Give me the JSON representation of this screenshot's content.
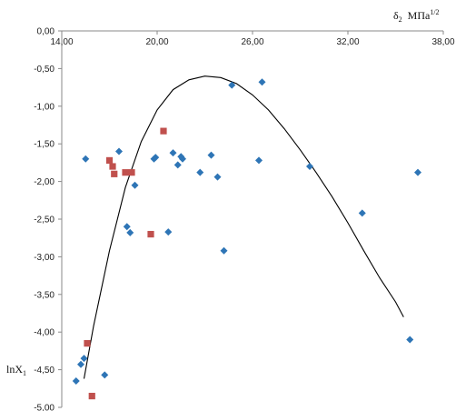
{
  "chart_data": {
    "type": "scatter",
    "title": "",
    "x_axis": {
      "label_main": "δ",
      "label_sub": "2",
      "label_units": "МПа",
      "label_units_sup": "1/2",
      "range": [
        14,
        38
      ],
      "ticks": [
        14,
        20,
        26,
        32,
        38
      ],
      "tick_labels": [
        "14,00",
        "20,00",
        "26,00",
        "32,00",
        "38,00"
      ],
      "position": "top"
    },
    "y_axis": {
      "label_main": "lnX",
      "label_sub": "1",
      "range": [
        -5,
        0
      ],
      "ticks": [
        0,
        -0.5,
        -1,
        -1.5,
        -2,
        -2.5,
        -3,
        -3.5,
        -4,
        -4.5,
        -5
      ],
      "tick_labels": [
        "0,00",
        "-0,50",
        "-1,00",
        "-1,50",
        "-2,00",
        "-2,50",
        "-3,00",
        "-3,50",
        "-4,00",
        "-4,50",
        "-5,00"
      ]
    },
    "grid": false,
    "legend": "none",
    "series": [
      {
        "marker": "diamond",
        "color": "#2e75b6",
        "points": [
          [
            15.5,
            -1.7
          ],
          [
            17.6,
            -1.6
          ],
          [
            18.1,
            -2.6
          ],
          [
            18.3,
            -2.68
          ],
          [
            18.6,
            -2.05
          ],
          [
            19.9,
            -1.68
          ],
          [
            19.8,
            -1.7
          ],
          [
            20.7,
            -2.67
          ],
          [
            21.0,
            -1.62
          ],
          [
            21.3,
            -1.78
          ],
          [
            21.6,
            -1.7
          ],
          [
            21.5,
            -1.67
          ],
          [
            22.7,
            -1.88
          ],
          [
            23.4,
            -1.65
          ],
          [
            23.8,
            -1.94
          ],
          [
            24.2,
            -2.92
          ],
          [
            24.7,
            -0.72
          ],
          [
            26.4,
            -1.72
          ],
          [
            26.6,
            -0.68
          ],
          [
            29.6,
            -1.8
          ],
          [
            32.9,
            -2.42
          ],
          [
            35.9,
            -4.1
          ],
          [
            36.4,
            -1.88
          ],
          [
            14.9,
            -4.65
          ],
          [
            15.2,
            -4.43
          ],
          [
            15.4,
            -4.35
          ],
          [
            16.7,
            -4.57
          ]
        ]
      },
      {
        "marker": "square",
        "color": "#c0504d",
        "points": [
          [
            17.0,
            -1.72
          ],
          [
            17.2,
            -1.8
          ],
          [
            17.3,
            -1.9
          ],
          [
            18.0,
            -1.88
          ],
          [
            18.4,
            -1.88
          ],
          [
            20.4,
            -1.33
          ],
          [
            19.6,
            -2.7
          ],
          [
            15.6,
            -4.15
          ],
          [
            15.9,
            -4.85
          ]
        ]
      }
    ],
    "fit_curve": {
      "color": "#000000",
      "points": [
        [
          15.4,
          -4.62
        ],
        [
          16.0,
          -3.92
        ],
        [
          17.0,
          -2.92
        ],
        [
          18.0,
          -2.08
        ],
        [
          19.0,
          -1.47
        ],
        [
          20.0,
          -1.05
        ],
        [
          21.0,
          -0.78
        ],
        [
          22.0,
          -0.65
        ],
        [
          23.0,
          -0.6
        ],
        [
          24.0,
          -0.62
        ],
        [
          25.0,
          -0.7
        ],
        [
          26.0,
          -0.85
        ],
        [
          27.0,
          -1.05
        ],
        [
          28.0,
          -1.3
        ],
        [
          29.0,
          -1.58
        ],
        [
          30.0,
          -1.88
        ],
        [
          31.0,
          -2.2
        ],
        [
          32.0,
          -2.55
        ],
        [
          33.0,
          -2.92
        ],
        [
          34.0,
          -3.28
        ],
        [
          35.0,
          -3.6
        ],
        [
          35.5,
          -3.8
        ]
      ]
    }
  }
}
